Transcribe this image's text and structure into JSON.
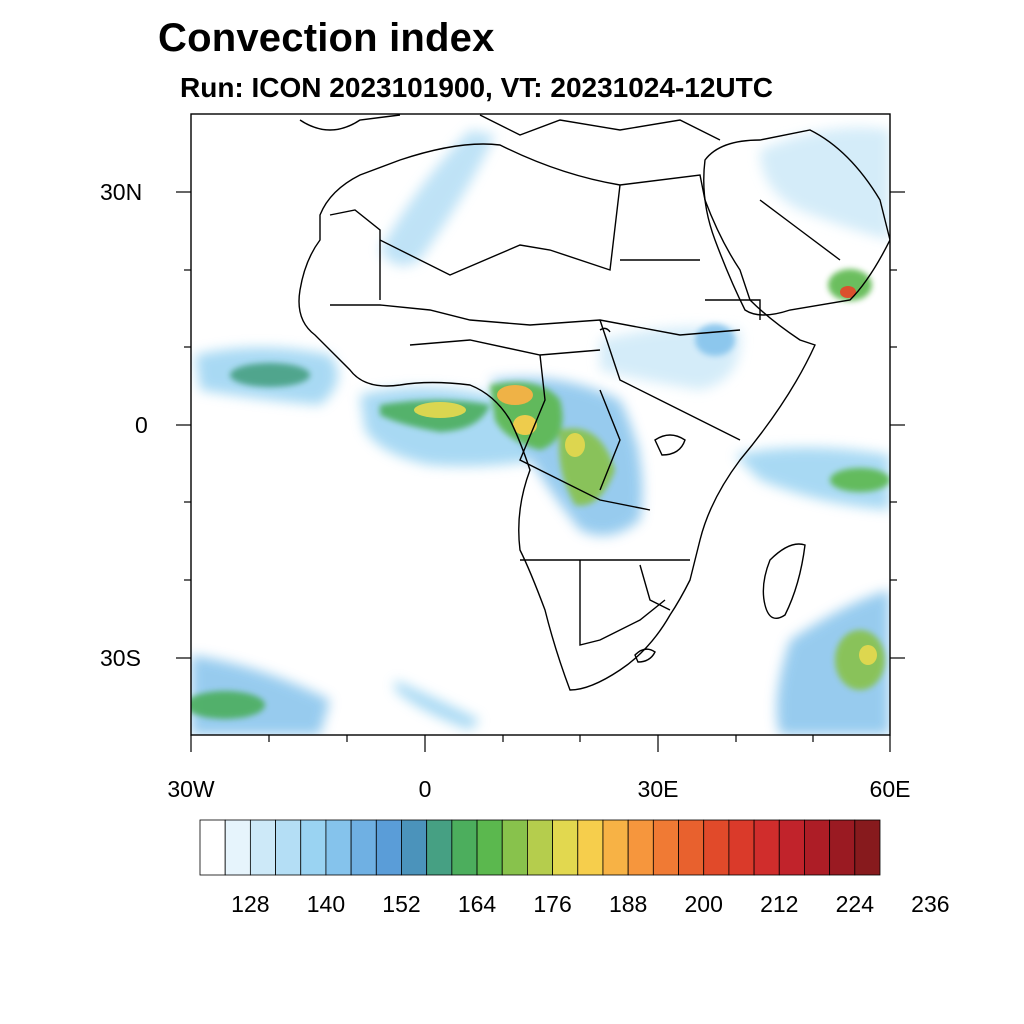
{
  "title": "Convection index",
  "subtitle": "Run: ICON 2023101900,  VT: 20231024-12UTC",
  "axes": {
    "lat_labels": [
      "30N",
      "0",
      "30S"
    ],
    "lon_labels": [
      "30W",
      "0",
      "30E",
      "60E"
    ]
  },
  "colorbar": {
    "labels": [
      "128",
      "140",
      "152",
      "164",
      "176",
      "188",
      "200",
      "212",
      "224",
      "236"
    ],
    "colors": [
      "#ffffff",
      "#e6f4fc",
      "#cde9f8",
      "#b4def5",
      "#9ad3f2",
      "#85c3ec",
      "#6fb0e3",
      "#5a9dd8",
      "#4b93bb",
      "#46a083",
      "#4cae5d",
      "#5bb84e",
      "#88c24c",
      "#b5cd4d",
      "#e2d84f",
      "#f6ce4c",
      "#f7b245",
      "#f6963d",
      "#f07a34",
      "#e8612e",
      "#e14a2a",
      "#da3a2a",
      "#d02d2c",
      "#c1232b",
      "#ad1d26",
      "#9a1a22",
      "#871a1d"
    ]
  },
  "fields": {
    "ocean_color": "#ffffff",
    "land_color": "#ffffff"
  }
}
